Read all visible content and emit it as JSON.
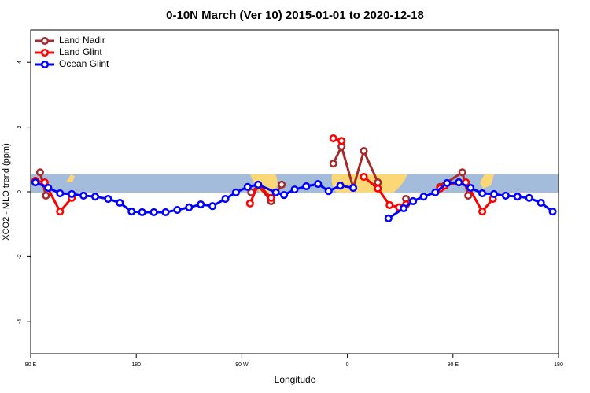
{
  "chart_data": {
    "type": "line",
    "title": "0-10N March (Ver 10)   2015-01-01 to 2020-12-18",
    "x_label": "Longitude",
    "y_label": "XCO2 - MLO trend (ppm)",
    "xlim": [
      90,
      540
    ],
    "ylim": [
      -5,
      5
    ],
    "xticks": [
      {
        "value": 90,
        "label": "90 E"
      },
      180,
      {
        "value": 270,
        "label": "90 W"
      },
      {
        "value": 360,
        "label": "0"
      },
      {
        "value": 450,
        "label": "90 E"
      },
      {
        "value": 540,
        "label": "180"
      }
    ],
    "yticks": [
      -4,
      -2,
      0,
      2,
      4
    ],
    "legend": "top-left",
    "series": [
      {
        "name": "Land Nadir",
        "color": "#a52a2a",
        "x": [
          98,
          103,
          null,
          278,
          284,
          295,
          304,
          null,
          348,
          355,
          365,
          374,
          386,
          null,
          410,
          null,
          439,
          458,
          463
        ],
        "values": [
          0.6,
          -0.12,
          null,
          -0.02,
          0.19,
          -0.29,
          0.22,
          null,
          0.87,
          1.4,
          0.12,
          1.26,
          0.29,
          null,
          -0.22,
          null,
          0.15,
          0.6,
          -0.12
        ]
      },
      {
        "name": "Land Glint",
        "color": "#ff0000",
        "x": [
          94,
          102,
          115,
          125,
          null,
          277,
          284,
          295,
          null,
          348,
          355,
          null,
          374,
          386,
          396,
          404,
          410,
          null,
          439,
          443,
          455,
          461,
          475,
          484
        ],
        "values": [
          0.34,
          0.29,
          -0.61,
          -0.19,
          null,
          -0.36,
          0.22,
          -0.19,
          null,
          1.65,
          1.57,
          null,
          0.46,
          0.1,
          -0.41,
          -0.48,
          -0.39,
          null,
          0.1,
          0.19,
          0.29,
          0.29,
          -0.61,
          -0.22
        ]
      },
      {
        "name": "Ocean Glint",
        "color": "#0000ff",
        "x": [
          94,
          105,
          115,
          125,
          135,
          145,
          156,
          166,
          176,
          185,
          195,
          205,
          215,
          225,
          235,
          245,
          256,
          265,
          275,
          284,
          299,
          306,
          315,
          325,
          335,
          344,
          354,
          365,
          null,
          395,
          408,
          416,
          425,
          435,
          445,
          455,
          465,
          475,
          485,
          495,
          505,
          515,
          525,
          535
        ],
        "values": [
          0.29,
          0.12,
          -0.05,
          -0.07,
          -0.12,
          -0.15,
          -0.22,
          -0.34,
          -0.61,
          -0.63,
          -0.63,
          -0.63,
          -0.56,
          -0.48,
          -0.39,
          -0.44,
          -0.22,
          -0.02,
          0.15,
          0.22,
          -0.02,
          -0.1,
          0.07,
          0.17,
          0.24,
          0.02,
          0.19,
          0.12,
          null,
          -0.82,
          -0.51,
          -0.29,
          -0.15,
          -0.02,
          0.27,
          0.29,
          0.12,
          -0.05,
          -0.07,
          -0.12,
          -0.15,
          -0.19,
          -0.34,
          -0.61
        ]
      }
    ]
  }
}
